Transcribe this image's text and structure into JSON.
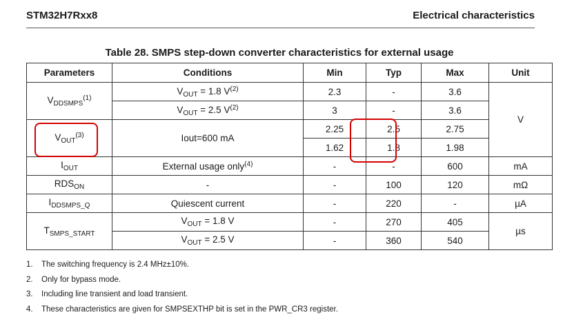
{
  "header": {
    "left": "STM32H7Rxx8",
    "right": "Electrical characteristics"
  },
  "caption": "Table 28. SMPS step-down converter characteristics for external usage",
  "columns": [
    "Parameters",
    "Conditions",
    "Min",
    "Typ",
    "Max",
    "Unit"
  ],
  "rows": {
    "vddsmps": {
      "param_main": "V",
      "param_sub": "DDSMPS",
      "param_sup": "(1)",
      "r1": {
        "cond_main": "V",
        "cond_sub": "OUT",
        "cond_rest": " = 1.8 V",
        "cond_sup": "(2)",
        "min": "2.3",
        "typ": "-",
        "max": "3.6"
      },
      "r2": {
        "cond_main": "V",
        "cond_sub": "OUT",
        "cond_rest": " = 2.5 V",
        "cond_sup": "(2)",
        "min": "3",
        "typ": "-",
        "max": "3.6"
      },
      "unit": "V"
    },
    "vout": {
      "param_main": "V",
      "param_sub": "OUT",
      "param_sup": "(3)",
      "cond": "Iout=600 mA",
      "r1": {
        "min": "2.25",
        "typ": "2.5",
        "max": "2.75"
      },
      "r2": {
        "min": "1.62",
        "typ": "1.8",
        "max": "1.98"
      }
    },
    "iout": {
      "param_main": "I",
      "param_sub": "OUT",
      "cond": "External usage only",
      "cond_sup": "(4)",
      "min": "-",
      "typ": "-",
      "max": "600",
      "unit": "mA"
    },
    "rdson": {
      "param_main": "RDS",
      "param_sub": "ON",
      "cond": "-",
      "min": "-",
      "typ": "100",
      "max": "120",
      "unit": "mΩ"
    },
    "iddsmps_q": {
      "param_main": "I",
      "param_sub": "DDSMPS_Q",
      "cond": "Quiescent current",
      "min": "-",
      "typ": "220",
      "max": "-",
      "unit": "µA"
    },
    "tsmps": {
      "param_main": "T",
      "param_sub": "SMPS_START",
      "r1": {
        "cond_main": "V",
        "cond_sub": "OUT",
        "cond_rest": " = 1.8 V",
        "min": "-",
        "typ": "270",
        "max": "405"
      },
      "r2": {
        "cond_main": "V",
        "cond_sub": "OUT",
        "cond_rest": " = 2.5 V",
        "min": "-",
        "typ": "360",
        "max": "540"
      },
      "unit": "µs"
    }
  },
  "notes": [
    {
      "num": "1.",
      "text": "The switching frequency is 2.4 MHz±10%."
    },
    {
      "num": "2.",
      "text": "Only for bypass mode."
    },
    {
      "num": "3.",
      "text": "Including line transient and load transient."
    },
    {
      "num": "4.",
      "text": "These characteristics are given for SMPSEXTHP bit is set in the PWR_CR3 register."
    }
  ],
  "highlight_color": "#d40000"
}
